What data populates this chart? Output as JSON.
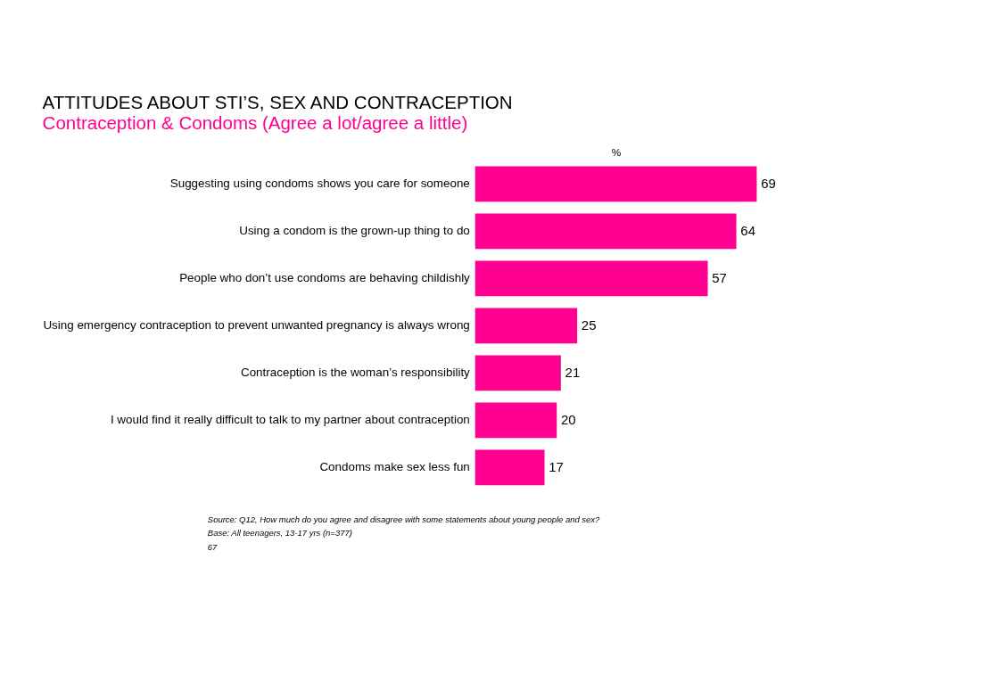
{
  "chart_data": {
    "type": "bar",
    "orientation": "horizontal",
    "title": "ATTITUDES ABOUT STI’S, SEX AND CONTRACEPTION",
    "subtitle": "Contraception & Condoms (Agree a lot/agree a little)",
    "xlabel": "%",
    "categories": [
      "Suggesting using condoms shows you care for someone",
      "Using a condom is the grown-up thing to do",
      "People who don’t use condoms are behaving childishly",
      "Using emergency contraception to prevent unwanted pregnancy is always wrong",
      "Contraception is the woman’s responsibility",
      "I would find it really difficult to talk to my partner about contraception",
      "Condoms make sex less fun"
    ],
    "values": [
      69,
      64,
      57,
      25,
      21,
      20,
      17
    ],
    "color": "#ff0090",
    "data_labels": true,
    "grid": false,
    "annotations": [
      "Source:  Q12, How much do you agree and disagree with some statements about young people and sex?",
      "Base:     All teenagers, 13-17 yrs (n=377)",
      "67"
    ]
  }
}
